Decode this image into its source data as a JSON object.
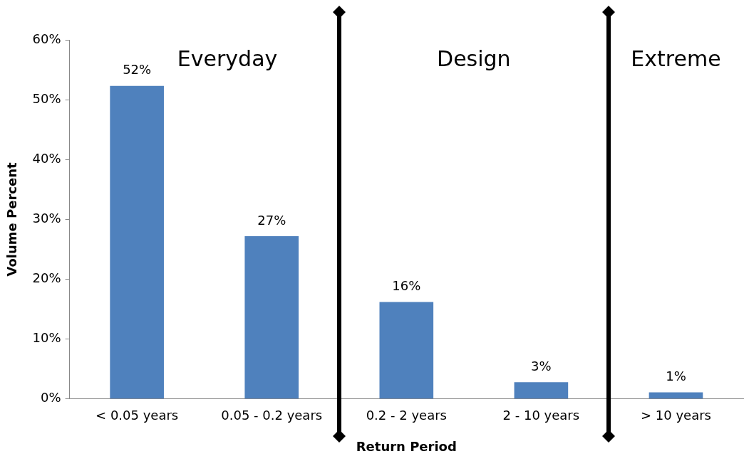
{
  "chart_data": {
    "type": "bar",
    "xlabel": "Return Period",
    "ylabel": "Volume Percent",
    "categories": [
      "< 0.05 years",
      "0.05 - 0.2 years",
      "0.2 - 2 years",
      "2 - 10 years",
      "> 10 years"
    ],
    "values": [
      52.3,
      27.2,
      16.2,
      2.8,
      1.1
    ],
    "color": "#4f81bd",
    "value_labels": [
      "52%",
      "27%",
      "16%",
      "3%",
      "1%"
    ],
    "ylim": [
      0,
      60
    ],
    "yticks": [
      {
        "value": 0,
        "label": "0%"
      },
      {
        "value": 10,
        "label": "10%"
      },
      {
        "value": 20,
        "label": "20%"
      },
      {
        "value": 30,
        "label": "30%"
      },
      {
        "value": 40,
        "label": "40%"
      },
      {
        "value": 50,
        "label": "50%"
      },
      {
        "value": 60,
        "label": "60%"
      }
    ],
    "annotations": [
      "Everyday",
      "Design",
      "Extreme"
    ],
    "grid": false,
    "legend": false
  }
}
